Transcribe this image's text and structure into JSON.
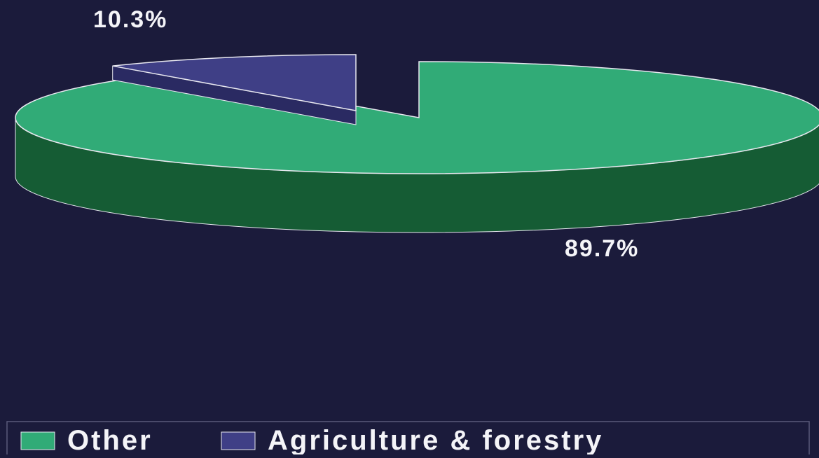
{
  "chart_data": {
    "type": "pie",
    "style": "3d-exploded",
    "slices": [
      {
        "name": "Other",
        "value": 89.7,
        "label": "89.7%",
        "color": "#31ab77",
        "side_color": "#155c34"
      },
      {
        "name": "Agriculture & forestry",
        "value": 10.3,
        "label": "10.3%",
        "color": "#3f3f86",
        "side_color": "#2a2a62"
      }
    ],
    "title": "",
    "legend": {
      "position": "bottom",
      "entries": [
        "Other",
        "Agriculture & forestry"
      ]
    }
  },
  "colors": {
    "background": "#1b1b3b",
    "outline": "#e8e8f0"
  }
}
